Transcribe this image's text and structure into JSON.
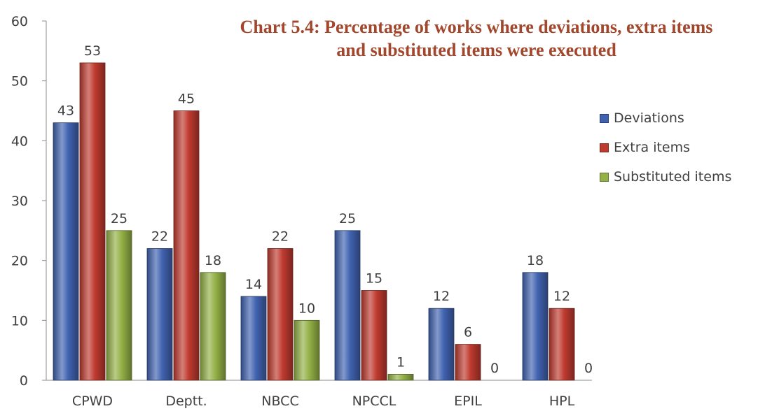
{
  "chart_data": {
    "type": "bar",
    "title_lines": [
      "Chart 5.4: Percentage of works where deviations, extra items",
      "and substituted items were executed"
    ],
    "categories": [
      "CPWD",
      "Deptt.",
      "NBCC",
      "NPCCL",
      "EPIL",
      "HPL"
    ],
    "series": [
      {
        "name": "Deviations",
        "color": "#4062b0",
        "values": [
          43,
          22,
          14,
          25,
          12,
          18
        ]
      },
      {
        "name": "Extra items",
        "color": "#bf3a2f",
        "values": [
          53,
          45,
          22,
          15,
          6,
          12
        ]
      },
      {
        "name": "Substituted items",
        "color": "#93b146",
        "values": [
          25,
          18,
          10,
          1,
          0,
          0
        ]
      }
    ],
    "ylim": [
      0,
      60
    ],
    "yticks": [
      0,
      10,
      20,
      30,
      40,
      50,
      60
    ],
    "grid": false,
    "legend_position": "right"
  }
}
